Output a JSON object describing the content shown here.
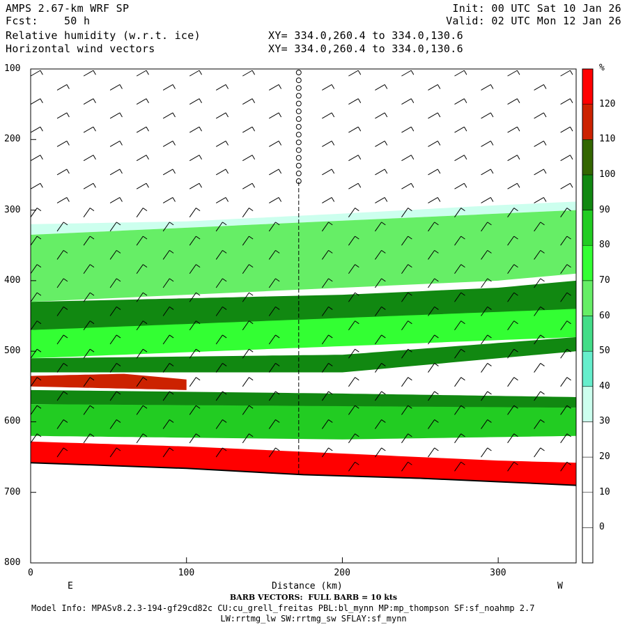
{
  "header": {
    "model": "AMPS 2.67-km WRF SP",
    "fcst": "Fcst:    50 h",
    "field1": "Relative humidity (w.r.t. ice)",
    "field2": "Horizontal wind vectors",
    "init": "Init: 00 UTC Sat 10 Jan 26",
    "valid": "Valid: 02 UTC Mon 12 Jan 26",
    "xy1": "XY= 334.0,260.4 to 334.0,130.6",
    "xy2": "XY= 334.0,260.4 to 334.0,130.6"
  },
  "footer": {
    "barb": "BARB VECTORS:  FULL BARB = 10 kts",
    "model_info": "Model Info: MPASv8.2.3-194-gf29cd82c CU:cu_grell_freitas PBL:bl_mynn MP:mp_thompson SF:sf_noahmp 2.7",
    "model_info2": "LW:rrtmg_lw SW:rrtmg_sw SFLAY:sf_mynn"
  },
  "chart_data": {
    "type": "heatmap",
    "title": "Relative humidity (w.r.t. ice)",
    "xlabel": "Distance (km)",
    "ylabel": "",
    "x_left_label": "E",
    "x_right_label": "W",
    "xlim": [
      0,
      350
    ],
    "ylim": [
      800,
      100
    ],
    "x_ticks": [
      0,
      100,
      200,
      300
    ],
    "y_ticks": [
      100,
      200,
      300,
      400,
      500,
      600,
      700,
      800
    ],
    "colorbar": {
      "unit": "%",
      "levels": [
        0,
        10,
        20,
        30,
        40,
        50,
        60,
        70,
        80,
        90,
        100,
        110,
        120
      ],
      "colors": [
        "#ffffff",
        "#ffffff",
        "#ffffff",
        "#ffffff",
        "#ccffee",
        "#66eecc",
        "#44dd88",
        "#66ee66",
        "#33ff33",
        "#22cc22",
        "#118811",
        "#336600",
        "#cc2200",
        "#ff0000"
      ]
    },
    "surface_pressure": [
      [
        0,
        658
      ],
      [
        50,
        662
      ],
      [
        100,
        666
      ],
      [
        150,
        672
      ],
      [
        175,
        675
      ],
      [
        250,
        680
      ],
      [
        300,
        685
      ],
      [
        350,
        690
      ]
    ],
    "layers": [
      {
        "name": "",
        "rh": 35,
        "top": [
          [
            0,
            320
          ],
          [
            100,
            316
          ],
          [
            200,
            305
          ],
          [
            300,
            293
          ],
          [
            350,
            288
          ]
        ],
        "bottom": [
          [
            0,
            335
          ],
          [
            350,
            300
          ]
        ]
      },
      {
        "name": "",
        "rh": 65,
        "top": [
          [
            0,
            335
          ],
          [
            350,
            300
          ]
        ],
        "bottom": [
          [
            0,
            430
          ],
          [
            100,
            420
          ],
          [
            200,
            410
          ],
          [
            300,
            400
          ],
          [
            350,
            390
          ]
        ]
      },
      {
        "name": "",
        "rh": 95,
        "top": [
          [
            0,
            430
          ],
          [
            100,
            425
          ],
          [
            200,
            420
          ],
          [
            300,
            410
          ],
          [
            350,
            400
          ]
        ],
        "bottom": [
          [
            0,
            470
          ],
          [
            100,
            465
          ],
          [
            200,
            460
          ],
          [
            300,
            450
          ],
          [
            350,
            440
          ]
        ]
      },
      {
        "name": "",
        "rh": 75,
        "top": [
          [
            0,
            470
          ],
          [
            350,
            440
          ]
        ],
        "bottom": [
          [
            0,
            510
          ],
          [
            350,
            480
          ]
        ]
      },
      {
        "name": "",
        "rh": 95,
        "top": [
          [
            0,
            510
          ],
          [
            200,
            505
          ],
          [
            350,
            480
          ]
        ],
        "bottom": [
          [
            0,
            530
          ],
          [
            200,
            530
          ],
          [
            350,
            500
          ]
        ]
      },
      {
        "name": "",
        "rh": 115,
        "top": [
          [
            0,
            535
          ],
          [
            60,
            532
          ],
          [
            100,
            540
          ]
        ],
        "bottom": [
          [
            0,
            550
          ],
          [
            60,
            553
          ],
          [
            100,
            555
          ]
        ]
      },
      {
        "name": "",
        "rh": 95,
        "top": [
          [
            0,
            555
          ],
          [
            200,
            560
          ],
          [
            350,
            565
          ]
        ],
        "bottom": [
          [
            0,
            575
          ],
          [
            200,
            580
          ],
          [
            350,
            580
          ]
        ]
      },
      {
        "name": "",
        "rh": 85,
        "top": [
          [
            0,
            575
          ],
          [
            350,
            580
          ]
        ],
        "bottom": [
          [
            0,
            620
          ],
          [
            200,
            625
          ],
          [
            350,
            620
          ]
        ]
      },
      {
        "name": "",
        "rh": 125,
        "top": [
          [
            0,
            628
          ],
          [
            100,
            635
          ],
          [
            200,
            645
          ],
          [
            300,
            655
          ],
          [
            350,
            658
          ]
        ],
        "bottom": [
          [
            0,
            658
          ],
          [
            100,
            666
          ],
          [
            175,
            675
          ],
          [
            300,
            685
          ],
          [
            350,
            690
          ]
        ]
      }
    ],
    "barb_columns_km": [
      0,
      17,
      34,
      51,
      68,
      85,
      102,
      119,
      136,
      153,
      170,
      187,
      204,
      221,
      238,
      255,
      272,
      289,
      306,
      323,
      340
    ],
    "barb_levels_hpa": [
      110,
      130,
      150,
      170,
      190,
      210,
      230,
      250,
      270,
      290,
      310,
      330,
      350,
      370,
      390,
      410,
      430,
      450,
      470,
      490,
      510,
      530,
      550,
      570,
      590,
      610,
      630,
      650,
      670
    ],
    "calm_station_km": 172,
    "calm_top_hpa": 260
  }
}
